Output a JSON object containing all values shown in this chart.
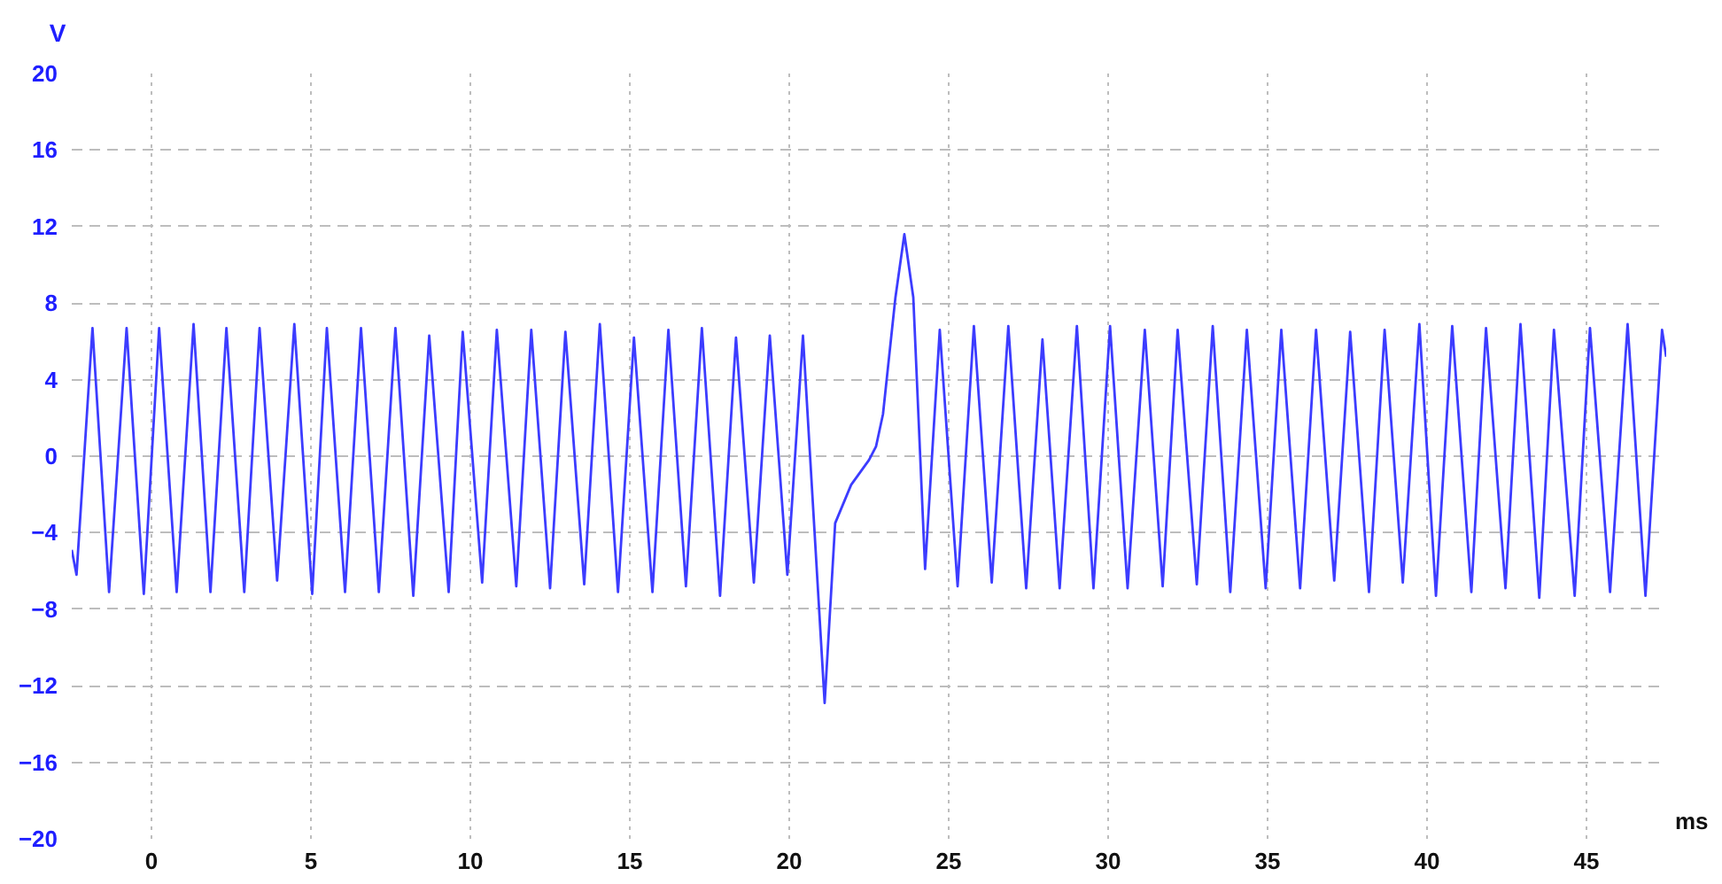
{
  "chart_data": {
    "type": "line",
    "xlabel": "ms",
    "ylabel": "V",
    "x": [
      -2.5,
      -2.35,
      -1.85,
      -1.33,
      -0.78,
      -0.24,
      0.24,
      0.79,
      1.32,
      1.85,
      2.35,
      2.91,
      3.39,
      3.94,
      4.48,
      5.04,
      5.5,
      6.07,
      6.57,
      7.13,
      7.65,
      8.21,
      8.71,
      9.32,
      9.76,
      10.37,
      10.83,
      11.44,
      11.91,
      12.5,
      12.98,
      13.57,
      14.06,
      14.63,
      15.13,
      15.71,
      16.21,
      16.76,
      17.26,
      17.83,
      18.33,
      18.89,
      19.39,
      19.94,
      20.43,
      21.11,
      21.44,
      21.94,
      22.5,
      22.72,
      22.94,
      23.33,
      23.61,
      23.89,
      24.26,
      24.72,
      25.28,
      25.79,
      26.35,
      26.87,
      27.43,
      27.94,
      28.48,
      29.02,
      29.54,
      30.06,
      30.61,
      31.15,
      31.71,
      32.18,
      32.78,
      33.28,
      33.83,
      34.35,
      34.94,
      35.43,
      36.02,
      36.52,
      37.09,
      37.59,
      38.18,
      38.67,
      39.24,
      39.76,
      40.28,
      40.79,
      41.39,
      41.85,
      42.46,
      42.93,
      43.52,
      43.98,
      44.63,
      45.11,
      45.74,
      46.29,
      46.85,
      47.37,
      47.5
    ],
    "series": [
      {
        "color": "#3c3cff",
        "values": [
          -4.9,
          -6.2,
          6.7,
          -7.1,
          6.7,
          -7.2,
          6.7,
          -7.1,
          6.9,
          -7.1,
          6.7,
          -7.1,
          6.7,
          -6.5,
          6.9,
          -7.2,
          6.7,
          -7.1,
          6.7,
          -7.1,
          6.7,
          -7.3,
          6.3,
          -7.1,
          6.5,
          -6.6,
          6.6,
          -6.8,
          6.6,
          -6.9,
          6.5,
          -6.7,
          6.9,
          -7.1,
          6.2,
          -7.1,
          6.6,
          -6.8,
          6.7,
          -7.3,
          6.2,
          -6.6,
          6.3,
          -6.2,
          6.3,
          -12.9,
          -3.5,
          -1.5,
          -0.2,
          0.5,
          2.2,
          8.3,
          11.6,
          8.3,
          -5.9,
          6.6,
          -6.8,
          6.8,
          -6.6,
          6.8,
          -6.9,
          6.1,
          -6.9,
          6.8,
          -6.9,
          6.8,
          -6.9,
          6.6,
          -6.8,
          6.6,
          -6.7,
          6.8,
          -7.1,
          6.6,
          -6.9,
          6.6,
          -6.9,
          6.6,
          -6.5,
          6.5,
          -7.1,
          6.6,
          -6.6,
          6.9,
          -7.3,
          6.8,
          -7.1,
          6.7,
          -6.9,
          6.9,
          -7.4,
          6.6,
          -7.3,
          6.7,
          -7.1,
          6.9,
          -7.3,
          6.6,
          5.2
        ]
      }
    ],
    "xlim": [
      -2.5,
      47.5
    ],
    "ylim": [
      -20,
      20
    ],
    "xticks": [
      0,
      5,
      10,
      15,
      20,
      25,
      30,
      35,
      40,
      45
    ],
    "yticks": [
      -20,
      -16,
      -12,
      -8,
      -4,
      0,
      4,
      8,
      12,
      16,
      20
    ],
    "grid": true,
    "line_style": "solid"
  }
}
